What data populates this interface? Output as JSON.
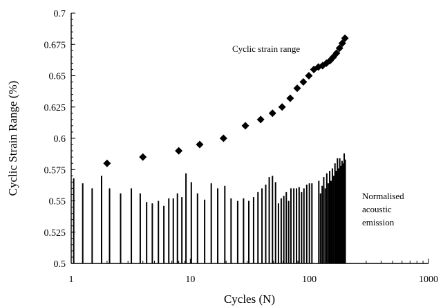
{
  "chart_data": {
    "type": "scatter",
    "title": "",
    "xlabel": "Cycles (N)",
    "ylabel": "Cyclic Strain Range (%)",
    "x_scale": "log",
    "xlim": [
      1,
      1000
    ],
    "ylim": [
      0.5,
      0.7
    ],
    "x_ticks": [
      "1",
      "10",
      "100",
      "1000"
    ],
    "y_ticks": [
      "0.5",
      "0.525",
      "0.55",
      "0.575",
      "0.6",
      "0.625",
      "0.65",
      "0.675",
      "0.7"
    ],
    "grid": false,
    "legend": "none",
    "annotations": [
      {
        "id": "strain-label",
        "lines": [
          "Cyclic strain range"
        ]
      },
      {
        "id": "ae-label",
        "lines": [
          "Normalised",
          "acoustic",
          "emission"
        ]
      }
    ],
    "series": [
      {
        "name": "Cyclic strain range",
        "marker": "diamond",
        "points": [
          [
            2,
            0.58
          ],
          [
            4,
            0.585
          ],
          [
            8,
            0.59
          ],
          [
            12,
            0.595
          ],
          [
            19,
            0.6
          ],
          [
            29,
            0.61
          ],
          [
            39,
            0.615
          ],
          [
            49,
            0.62
          ],
          [
            59,
            0.625
          ],
          [
            69,
            0.632
          ],
          [
            79,
            0.64
          ],
          [
            89,
            0.645
          ],
          [
            99,
            0.65
          ],
          [
            109,
            0.655
          ],
          [
            119,
            0.657
          ],
          [
            129,
            0.658
          ],
          [
            139,
            0.66
          ],
          [
            149,
            0.662
          ],
          [
            159,
            0.665
          ],
          [
            169,
            0.668
          ],
          [
            179,
            0.672
          ],
          [
            189,
            0.676
          ],
          [
            199,
            0.68
          ]
        ]
      },
      {
        "name": "Normalised acoustic emission",
        "marker": "bar",
        "points": [
          [
            1.05,
            0.568
          ],
          [
            1.25,
            0.564
          ],
          [
            1.5,
            0.56
          ],
          [
            1.8,
            0.57
          ],
          [
            2.1,
            0.56
          ],
          [
            2.6,
            0.556
          ],
          [
            3.2,
            0.56
          ],
          [
            3.8,
            0.556
          ],
          [
            4.3,
            0.549
          ],
          [
            4.8,
            0.548
          ],
          [
            5.4,
            0.55
          ],
          [
            6.0,
            0.546
          ],
          [
            6.6,
            0.552
          ],
          [
            7.2,
            0.552
          ],
          [
            7.8,
            0.556
          ],
          [
            8.5,
            0.553
          ],
          [
            9.2,
            0.572
          ],
          [
            10.2,
            0.565
          ],
          [
            11.5,
            0.556
          ],
          [
            13.2,
            0.551
          ],
          [
            15.0,
            0.564
          ],
          [
            17.0,
            0.56
          ],
          [
            19.5,
            0.562
          ],
          [
            22.0,
            0.552
          ],
          [
            25.0,
            0.55
          ],
          [
            28.0,
            0.552
          ],
          [
            31.0,
            0.55
          ],
          [
            34.0,
            0.553
          ],
          [
            37.0,
            0.557
          ],
          [
            40.0,
            0.56
          ],
          [
            43.0,
            0.563
          ],
          [
            46.0,
            0.569
          ],
          [
            49.0,
            0.57
          ],
          [
            52.0,
            0.565
          ],
          [
            55.0,
            0.548
          ],
          [
            58.0,
            0.552
          ],
          [
            61.0,
            0.554
          ],
          [
            64.0,
            0.557
          ],
          [
            67.0,
            0.55
          ],
          [
            70.0,
            0.56
          ],
          [
            74.0,
            0.56
          ],
          [
            78.0,
            0.56
          ],
          [
            82.0,
            0.561
          ],
          [
            86.0,
            0.557
          ],
          [
            90.0,
            0.56
          ],
          [
            95.0,
            0.563
          ],
          [
            100.0,
            0.564
          ],
          [
            105.0,
            0.564
          ],
          [
            120.0,
            0.566
          ],
          [
            124.0,
            0.556
          ],
          [
            128.0,
            0.562
          ],
          [
            132.0,
            0.569
          ],
          [
            136.0,
            0.56
          ],
          [
            140.0,
            0.572
          ],
          [
            144.0,
            0.564
          ],
          [
            148.0,
            0.574
          ],
          [
            152.0,
            0.566
          ],
          [
            156.0,
            0.576
          ],
          [
            160.0,
            0.57
          ],
          [
            164.0,
            0.58
          ],
          [
            168.0,
            0.574
          ],
          [
            172.0,
            0.584
          ],
          [
            176.0,
            0.576
          ],
          [
            180.0,
            0.584
          ],
          [
            184.0,
            0.578
          ],
          [
            188.0,
            0.582
          ],
          [
            192.0,
            0.58
          ],
          [
            196.0,
            0.588
          ],
          [
            200.0,
            0.583
          ]
        ]
      }
    ]
  }
}
